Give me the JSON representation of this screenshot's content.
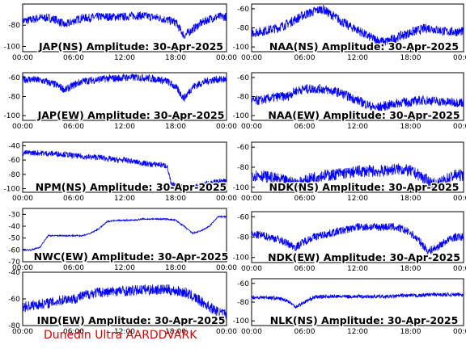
{
  "footer_text": "Dunedin Ultra AARDDVARK",
  "chart_data": [
    {
      "type": "line",
      "title": "JAP(NS) Amplitude: 30-Apr-2025",
      "x_ticks": [
        "00:00",
        "06:00",
        "12:00",
        "18:00",
        "00:00"
      ],
      "ylim": [
        -105,
        -60
      ],
      "y_ticks": [
        -80,
        -100
      ],
      "x": [
        0,
        1,
        2,
        3,
        4,
        5,
        6,
        7,
        8,
        9,
        10,
        11,
        12,
        13,
        14,
        15,
        16,
        17,
        18,
        19,
        20,
        21,
        22,
        23,
        24
      ],
      "y": [
        -76,
        -75,
        -73,
        -73,
        -75,
        -80,
        -76,
        -73,
        -73,
        -72,
        -72,
        -72,
        -72,
        -71,
        -71,
        -72,
        -73,
        -75,
        -77,
        -90,
        -84,
        -78,
        -74,
        -72,
        -72
      ],
      "noise": 4,
      "color": "#0000ff"
    },
    {
      "type": "line",
      "title": "NAA(NS) Amplitude: 30-Apr-2025",
      "x_ticks": [
        "00:00",
        "06:00",
        "12:00",
        "18:00",
        "00:00"
      ],
      "ylim": [
        -105,
        -55
      ],
      "y_ticks": [
        -60,
        -80,
        -100
      ],
      "x": [
        0,
        1,
        2,
        3,
        4,
        5,
        6,
        7,
        8,
        9,
        10,
        11,
        12,
        13,
        14,
        15,
        16,
        17,
        18,
        19,
        20,
        21,
        22,
        23,
        24
      ],
      "y": [
        -85,
        -84,
        -82,
        -80,
        -76,
        -71,
        -66,
        -63,
        -60,
        -66,
        -72,
        -78,
        -82,
        -88,
        -92,
        -95,
        -92,
        -88,
        -85,
        -82,
        -80,
        -82,
        -84,
        -84,
        -84
      ],
      "noise": 5,
      "color": "#0000ff"
    },
    {
      "type": "line",
      "title": "JAP(EW) Amplitude: 30-Apr-2025",
      "x_ticks": [
        "00:00",
        "06:00",
        "12:00",
        "18:00",
        "00:00"
      ],
      "ylim": [
        -105,
        -55
      ],
      "y_ticks": [
        -60,
        -80,
        -100
      ],
      "x": [
        0,
        1,
        2,
        3,
        4,
        5,
        6,
        7,
        8,
        9,
        10,
        11,
        12,
        13,
        14,
        15,
        16,
        17,
        18,
        19,
        20,
        21,
        22,
        23,
        24
      ],
      "y": [
        -62,
        -62,
        -63,
        -65,
        -68,
        -73,
        -68,
        -64,
        -63,
        -62,
        -61,
        -61,
        -60,
        -60,
        -60,
        -61,
        -62,
        -64,
        -70,
        -82,
        -70,
        -66,
        -63,
        -62,
        -62
      ],
      "noise": 4,
      "color": "#0000ff"
    },
    {
      "type": "line",
      "title": "NAA(EW) Amplitude: 30-Apr-2025",
      "x_ticks": [
        "00:00",
        "06:00",
        "12:00",
        "18:00",
        "00:00"
      ],
      "ylim": [
        -105,
        -55
      ],
      "y_ticks": [
        -60,
        -80,
        -100
      ],
      "x": [
        0,
        1,
        2,
        3,
        4,
        5,
        6,
        7,
        8,
        9,
        10,
        11,
        12,
        13,
        14,
        15,
        16,
        17,
        18,
        19,
        20,
        21,
        22,
        23,
        24
      ],
      "y": [
        -85,
        -84,
        -82,
        -80,
        -80,
        -74,
        -72,
        -72,
        -72,
        -74,
        -76,
        -80,
        -84,
        -88,
        -92,
        -90,
        -88,
        -86,
        -86,
        -84,
        -84,
        -85,
        -86,
        -86,
        -86
      ],
      "noise": 5,
      "color": "#0000ff"
    },
    {
      "type": "line",
      "title": "NPM(NS) Amplitude: 30-Apr-2025",
      "x_ticks": [
        "00:00",
        "06:00",
        "12:00",
        "18:00",
        "00:00"
      ],
      "ylim": [
        -105,
        -35
      ],
      "y_ticks": [
        -40,
        -60,
        -80,
        -100
      ],
      "x": [
        0,
        1,
        2,
        3,
        4,
        5,
        6,
        7,
        8,
        9,
        10,
        11,
        12,
        13,
        14,
        15,
        16,
        17,
        17.5,
        18,
        19,
        20,
        21,
        22,
        23,
        24
      ],
      "y": [
        -50,
        -50,
        -50,
        -51,
        -51,
        -52,
        -54,
        -55,
        -56,
        -56,
        -58,
        -60,
        -60,
        -62,
        -64,
        -66,
        -66,
        -68,
        -95,
        -96,
        -97,
        -98,
        -95,
        -92,
        -90,
        -90
      ],
      "noise": 4,
      "color": "#0000ff"
    },
    {
      "type": "line",
      "title": "NDK(NS) Amplitude: 30-Apr-2025",
      "x_ticks": [
        "00:00",
        "06:00",
        "12:00",
        "18:00",
        "00:00"
      ],
      "ylim": [
        -105,
        -55
      ],
      "y_ticks": [
        -60,
        -80,
        -100
      ],
      "x": [
        0,
        1,
        2,
        3,
        4,
        5,
        6,
        7,
        8,
        9,
        10,
        11,
        12,
        13,
        14,
        15,
        16,
        17,
        18,
        19,
        20,
        21,
        22,
        23,
        24
      ],
      "y": [
        -88,
        -88,
        -90,
        -92,
        -94,
        -96,
        -94,
        -90,
        -88,
        -88,
        -86,
        -86,
        -84,
        -84,
        -84,
        -84,
        -82,
        -82,
        -84,
        -88,
        -94,
        -98,
        -92,
        -88,
        -88
      ],
      "noise": 6,
      "color": "#0000ff"
    },
    {
      "type": "line",
      "title": "NWC(EW) Amplitude: 30-Apr-2025",
      "x_ticks": [
        "00:00",
        "06:00",
        "12:00",
        "18:00",
        "00:00"
      ],
      "ylim": [
        -70,
        -25
      ],
      "y_ticks": [
        -30,
        -40,
        -50,
        -60,
        -70
      ],
      "x": [
        0,
        1,
        2,
        3,
        4,
        5,
        6,
        7,
        8,
        9,
        10,
        11,
        12,
        13,
        14,
        15,
        16,
        17,
        18,
        19,
        20,
        21,
        22,
        23,
        24
      ],
      "y": [
        -60,
        -60,
        -58,
        -48,
        -48,
        -48,
        -48,
        -48,
        -46,
        -42,
        -36,
        -35,
        -35,
        -35,
        -34,
        -34,
        -34,
        -34,
        -35,
        -40,
        -46,
        -44,
        -40,
        -32,
        -32
      ],
      "noise": 0.6,
      "color": "#0000ff"
    },
    {
      "type": "line",
      "title": "NDK(EW) Amplitude: 30-Apr-2025",
      "x_ticks": [
        "00:00",
        "06:00",
        "12:00",
        "18:00",
        "00:00"
      ],
      "ylim": [
        -105,
        -55
      ],
      "y_ticks": [
        -60,
        -80,
        -100
      ],
      "x": [
        0,
        1,
        2,
        3,
        4,
        5,
        6,
        7,
        8,
        9,
        10,
        11,
        12,
        13,
        14,
        15,
        16,
        17,
        18,
        19,
        20,
        21,
        22,
        23,
        24
      ],
      "y": [
        -78,
        -78,
        -80,
        -82,
        -86,
        -90,
        -84,
        -80,
        -78,
        -76,
        -74,
        -72,
        -70,
        -70,
        -70,
        -70,
        -70,
        -72,
        -76,
        -84,
        -94,
        -90,
        -84,
        -80,
        -80
      ],
      "noise": 4,
      "color": "#0000ff"
    },
    {
      "type": "line",
      "title": "IND(EW) Amplitude: 30-Apr-2025",
      "x_ticks": [
        "00:00",
        "06:00",
        "12:00",
        "18:00",
        "00:00"
      ],
      "ylim": [
        -80,
        -40
      ],
      "y_ticks": [
        -40,
        -60,
        -80
      ],
      "x": [
        0,
        1,
        2,
        3,
        4,
        5,
        6,
        7,
        8,
        9,
        10,
        11,
        12,
        13,
        14,
        15,
        16,
        17,
        18,
        19,
        20,
        21,
        22,
        23,
        24
      ],
      "y": [
        -66,
        -65,
        -64,
        -63,
        -62,
        -60,
        -60,
        -58,
        -56,
        -55,
        -55,
        -54,
        -54,
        -54,
        -53,
        -53,
        -53,
        -53,
        -54,
        -55,
        -58,
        -62,
        -66,
        -70,
        -72
      ],
      "noise": 4,
      "color": "#0000ff"
    },
    {
      "type": "line",
      "title": "NLK(NS) Amplitude: 30-Apr-2025",
      "x_ticks": [
        "00:00",
        "06:00",
        "12:00",
        "18:00",
        "00:00"
      ],
      "ylim": [
        -105,
        -55
      ],
      "y_ticks": [
        -60,
        -80,
        -100
      ],
      "x": [
        0,
        1,
        2,
        3,
        4,
        5,
        6,
        7,
        8,
        9,
        10,
        11,
        12,
        13,
        14,
        15,
        16,
        17,
        18,
        19,
        20,
        21,
        22,
        23,
        24
      ],
      "y": [
        -75,
        -75,
        -75,
        -76,
        -78,
        -85,
        -80,
        -75,
        -74,
        -74,
        -74,
        -74,
        -74,
        -74,
        -74,
        -74,
        -74,
        -73,
        -73,
        -73,
        -72,
        -72,
        -72,
        -72,
        -72
      ],
      "noise": 2,
      "color": "#0000ff"
    }
  ]
}
